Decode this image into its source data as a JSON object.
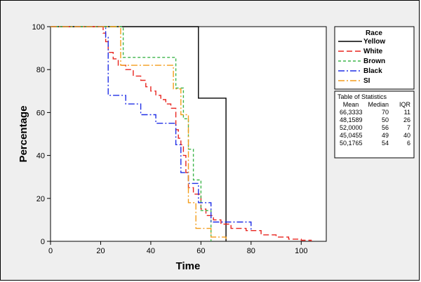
{
  "chart_data": {
    "type": "line",
    "subtype": "step",
    "xlabel": "Time",
    "ylabel": "Percentage",
    "xlim": [
      0,
      110
    ],
    "ylim": [
      0,
      100
    ],
    "x_ticks": [
      0,
      20,
      40,
      60,
      80,
      100
    ],
    "y_ticks": [
      0,
      20,
      40,
      60,
      80,
      100
    ],
    "grid": false,
    "legend": {
      "title": "Race",
      "placement": "right"
    },
    "series": [
      {
        "name": "Yellow",
        "color": "#000000",
        "dash": "solid",
        "x": [
          0,
          59,
          59,
          70,
          70
        ],
        "y": [
          100,
          100,
          66.7,
          66.7,
          0
        ]
      },
      {
        "name": "White",
        "color": "#e8251f",
        "dash": "long-dash",
        "x": [
          0,
          21,
          22,
          23,
          25,
          27,
          30,
          33,
          36,
          38,
          40,
          42,
          44,
          46,
          48,
          50,
          51,
          52,
          53,
          54,
          55,
          57,
          60,
          62,
          65,
          68,
          72,
          78,
          84,
          90,
          95,
          100,
          104
        ],
        "y": [
          100,
          97,
          93,
          88,
          85,
          82,
          80,
          77,
          75,
          72,
          70,
          68,
          66,
          64,
          62,
          52,
          48,
          45,
          40,
          32,
          25,
          22,
          15,
          12,
          10,
          8,
          6,
          5,
          3,
          2,
          1,
          0.5,
          0
        ]
      },
      {
        "name": "Brown",
        "color": "#3cb54a",
        "dash": "short-dash",
        "x": [
          0,
          29,
          29,
          50,
          50,
          53,
          53,
          55,
          55,
          57,
          57,
          60,
          60,
          64,
          64
        ],
        "y": [
          100,
          100,
          85.7,
          85.7,
          71.4,
          71.4,
          57.1,
          57.1,
          42.9,
          42.9,
          28.6,
          28.6,
          14.3,
          14.3,
          0
        ]
      },
      {
        "name": "Black",
        "color": "#1f2ee6",
        "dash": "dash-dot",
        "x": [
          0,
          22,
          22,
          23,
          23,
          30,
          30,
          36,
          36,
          42,
          42,
          50,
          50,
          52,
          52,
          55,
          55,
          59,
          59,
          64,
          64,
          80,
          80
        ],
        "y": [
          100,
          100,
          95,
          95,
          68,
          68,
          64,
          64,
          59,
          59,
          55,
          55,
          45,
          45,
          32,
          32,
          27,
          27,
          18,
          18,
          9,
          9,
          4.5
        ]
      },
      {
        "name": "SI",
        "color": "#f39c1a",
        "dash": "dash-dot",
        "x": [
          0,
          28,
          28,
          31,
          31,
          38,
          38,
          49,
          49,
          52,
          52,
          55,
          55,
          58,
          58,
          64,
          64,
          70,
          70
        ],
        "y": [
          100,
          100,
          82,
          82,
          82,
          82,
          82,
          82,
          71,
          71,
          59,
          59,
          18,
          18,
          6,
          6,
          2,
          2,
          0
        ]
      }
    ],
    "stats_table": {
      "title": "Table of Statistics",
      "headers": [
        "Mean",
        "Median",
        "IQR"
      ],
      "rows": [
        [
          "66,3333",
          "70",
          "11"
        ],
        [
          "48,1589",
          "50",
          "26"
        ],
        [
          "52,0000",
          "56",
          "7"
        ],
        [
          "45,0455",
          "49",
          "40"
        ],
        [
          "50,1765",
          "54",
          "6"
        ]
      ]
    }
  }
}
